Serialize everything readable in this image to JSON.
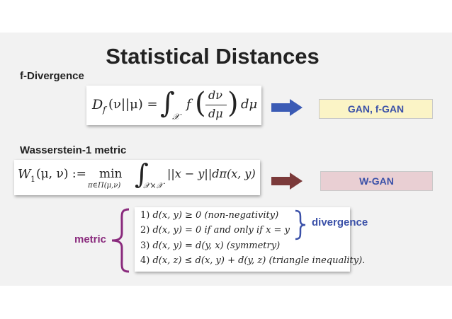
{
  "title": "Statistical Distances",
  "f_divergence": {
    "heading": "f-Divergence",
    "formula_lhs": "D",
    "formula_sub": "f",
    "formula_args": "(ν||μ) =",
    "integral_sub": "𝒳",
    "f": "f",
    "frac_num": "dν",
    "frac_den": "dμ",
    "tail": "dμ",
    "tag": "GAN, f-GAN",
    "tag_color": "#fbf4c6",
    "arrow_color": "#3b5bb5"
  },
  "wasserstein": {
    "heading": "Wasserstein-1 metric",
    "formula_lhs": "W",
    "formula_sub": "1",
    "formula_args": "(μ, ν) :=",
    "min": "min",
    "min_sub": "π∈Π(μ,ν)",
    "integral_sub": "𝒳×𝒳",
    "tail": "||x − y||dπ(x, y)",
    "tag": "W-GAN",
    "tag_color": "#e9cfd3",
    "arrow_color": "#7b3a3a"
  },
  "properties": {
    "metric_label": "metric",
    "divergence_label": "divergence",
    "items": [
      {
        "num": "1)",
        "math": "d(x, y) ≥ 0",
        "note": "(non-negativity)"
      },
      {
        "num": "2)",
        "math": "d(x, y) = 0",
        "note": "if and only if x = y"
      },
      {
        "num": "3)",
        "math": "d(x, y) = d(y, x)",
        "note": "(symmetry)"
      },
      {
        "num": "4)",
        "math": "d(x, z) ≤ d(x, y) + d(y, z)",
        "note": "(triangle inequality)."
      }
    ]
  }
}
